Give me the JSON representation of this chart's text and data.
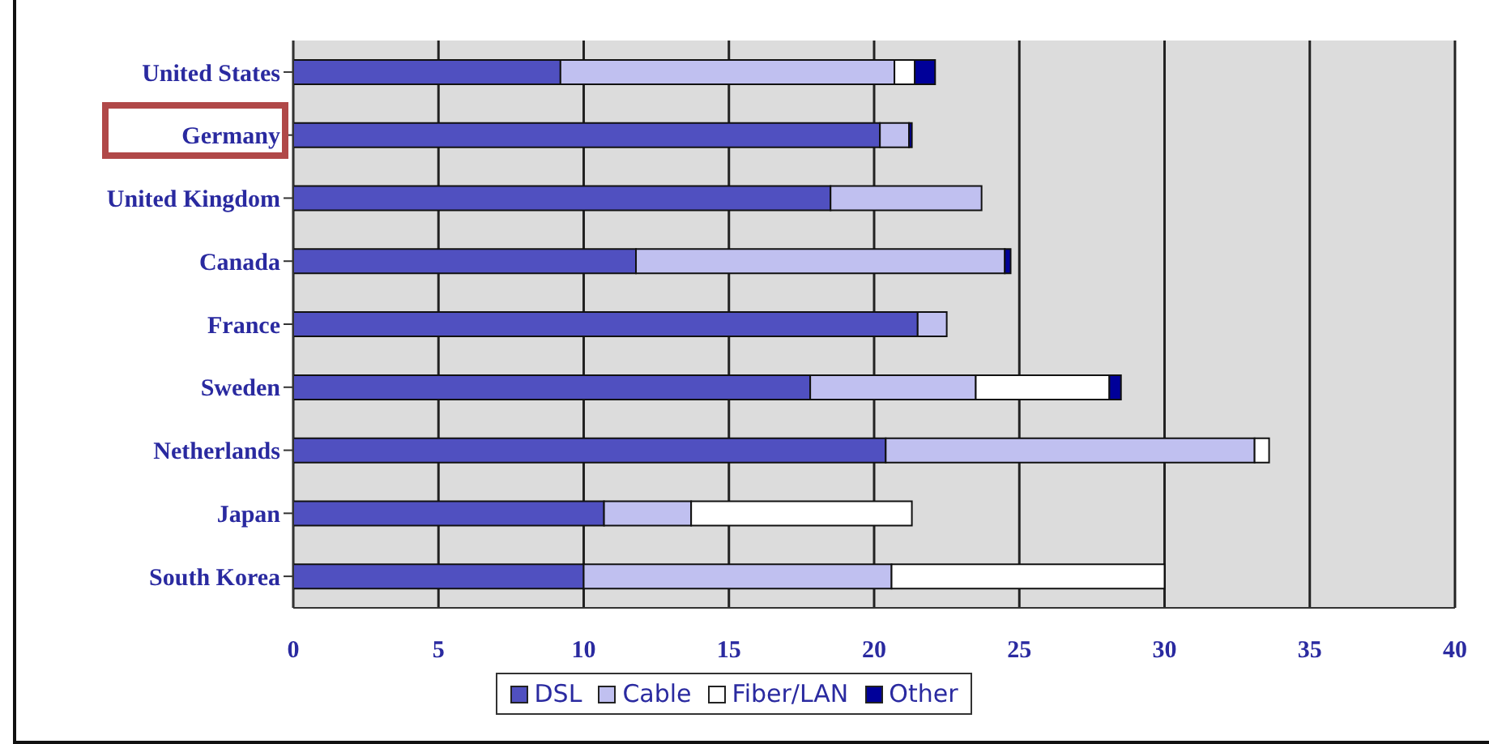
{
  "chart_data": {
    "type": "bar",
    "orientation": "horizontal",
    "stacked": true,
    "categories": [
      "United States",
      "Germany",
      "United Kingdom",
      "Canada",
      "France",
      "Sweden",
      "Netherlands",
      "Japan",
      "South Korea"
    ],
    "series": [
      {
        "name": "DSL",
        "color": "#5050c0",
        "values": [
          9.2,
          20.2,
          18.5,
          11.8,
          21.5,
          17.8,
          20.4,
          10.7,
          10.0
        ]
      },
      {
        "name": "Cable",
        "color": "#c0c0f0",
        "values": [
          11.5,
          1.0,
          5.2,
          12.7,
          1.0,
          5.7,
          12.7,
          3.0,
          10.6
        ]
      },
      {
        "name": "Fiber/LAN",
        "color": "#ffffff",
        "values": [
          0.7,
          null,
          null,
          null,
          null,
          4.6,
          0.5,
          7.6,
          9.4
        ]
      },
      {
        "name": "Other",
        "color": "#000099",
        "values": [
          0.7,
          0.1,
          null,
          0.2,
          null,
          0.4,
          null,
          null,
          null
        ]
      }
    ],
    "xlim": [
      0,
      40
    ],
    "xticks": [
      0,
      5,
      10,
      15,
      20,
      25,
      30,
      35,
      40
    ],
    "grid": "x",
    "legend": "bottom"
  }
}
